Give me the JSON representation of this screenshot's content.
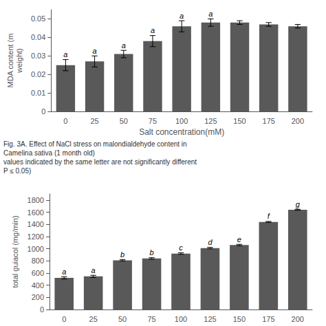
{
  "chart_data": [
    {
      "type": "bar",
      "xlabel": "Salt concentration(mM)",
      "ylabel": "MDA content (m\nweight)",
      "categories": [
        "0",
        "25",
        "50",
        "75",
        "100",
        "125",
        "150",
        "175",
        "200"
      ],
      "values": [
        0.025,
        0.027,
        0.031,
        0.038,
        0.046,
        0.048,
        0.048,
        0.047,
        0.046
      ],
      "errors": [
        0.003,
        0.003,
        0.002,
        0.003,
        0.003,
        0.002,
        0.001,
        0.001,
        0.001
      ],
      "letters": [
        "a",
        "a",
        "a",
        "a",
        "a",
        "a",
        null,
        null,
        null
      ],
      "ylim": [
        0,
        0.055
      ],
      "yticks": [
        0,
        0.01,
        0.02,
        0.03,
        0.04,
        0.05
      ],
      "color": "#595959",
      "grid": false,
      "annotations": [
        "Fig. 3A. Effect of NaCl stress on malondialdehyde content in",
        "Camelina sativa (1 month old)",
        "values indicated by the same letter are not significantly different",
        "P ≤ 0.05)"
      ]
    },
    {
      "type": "bar",
      "ylabel": "total guiacol (mg/min)",
      "categories": [
        "0",
        "25",
        "50",
        "75",
        "100",
        "125",
        "150",
        "175",
        "200"
      ],
      "values": [
        520,
        545,
        810,
        840,
        920,
        1010,
        1060,
        1440,
        1640
      ],
      "errors": [
        18,
        18,
        12,
        12,
        12,
        12,
        12,
        8,
        8
      ],
      "letters": [
        "a",
        "a",
        "b",
        "b",
        "c",
        "d",
        "e",
        "f",
        "g"
      ],
      "ylim": [
        0,
        1900
      ],
      "yticks": [
        0,
        200,
        400,
        600,
        800,
        1000,
        1200,
        1400,
        1600,
        1800
      ],
      "color": "#595959",
      "grid": false
    }
  ]
}
